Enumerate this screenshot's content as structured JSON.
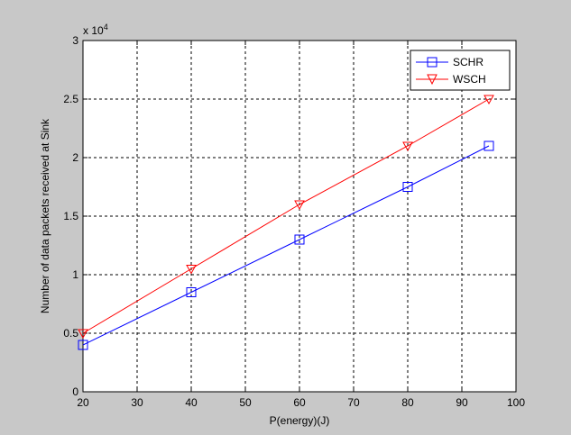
{
  "chart_data": {
    "type": "line",
    "title": "",
    "xlabel": "P(energy)(J)",
    "ylabel": "Number of data packets received at Sink",
    "y_multiplier_label": {
      "base": "x 10",
      "exponent": "4"
    },
    "xlim": [
      20,
      100
    ],
    "ylim": [
      0,
      3
    ],
    "x_ticks": [
      20,
      30,
      40,
      50,
      60,
      70,
      80,
      90,
      100
    ],
    "y_ticks": [
      0,
      0.5,
      1,
      1.5,
      2,
      2.5,
      3
    ],
    "x_tick_labels": [
      "20",
      "30",
      "40",
      "50",
      "60",
      "70",
      "80",
      "90",
      "100"
    ],
    "y_tick_labels": [
      "0",
      "0.5",
      "1",
      "1.5",
      "2",
      "2.5",
      "3"
    ],
    "grid": true,
    "legend_position": "top-right",
    "series": [
      {
        "name": "SCHR",
        "color": "#0000ff",
        "marker": "square",
        "x": [
          20,
          40,
          60,
          80,
          95
        ],
        "values": [
          0.4,
          0.85,
          1.3,
          1.75,
          2.1
        ]
      },
      {
        "name": "WSCH",
        "color": "#ff0000",
        "marker": "triangle-down",
        "x": [
          20,
          40,
          60,
          80,
          95
        ],
        "values": [
          0.5,
          1.05,
          1.6,
          2.1,
          2.5
        ]
      }
    ]
  }
}
